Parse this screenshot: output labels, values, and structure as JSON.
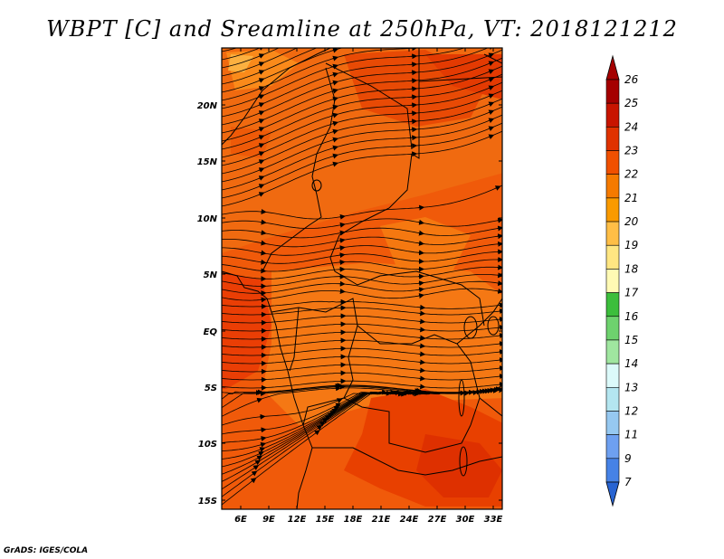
{
  "title": "WBPT [C] and Sreamline at 250hPa, VT: 2018121212",
  "footer": "GrADS: IGES/COLA",
  "map": {
    "lon_ticks": [
      "6E",
      "9E",
      "12E",
      "15E",
      "18E",
      "21E",
      "24E",
      "27E",
      "30E",
      "33E"
    ],
    "lat_ticks": [
      "20N",
      "15N",
      "10N",
      "5N",
      "EQ",
      "5S",
      "10S",
      "15S"
    ]
  },
  "colorbar": {
    "labels": [
      "26",
      "25",
      "24",
      "23",
      "22",
      "21",
      "20",
      "19",
      "18",
      "17",
      "16",
      "15",
      "14",
      "13",
      "12",
      "11",
      "9",
      "7"
    ],
    "colors": [
      "#a50000",
      "#c81400",
      "#e03200",
      "#f05000",
      "#f57a00",
      "#fa9a00",
      "#ffbe46",
      "#ffe682",
      "#fffab4",
      "#3cbe3c",
      "#6ed26e",
      "#a0e6a0",
      "#dcfafa",
      "#b4e6f0",
      "#96c8f0",
      "#6ea0f0",
      "#4682e6",
      "#2864d2"
    ]
  }
}
